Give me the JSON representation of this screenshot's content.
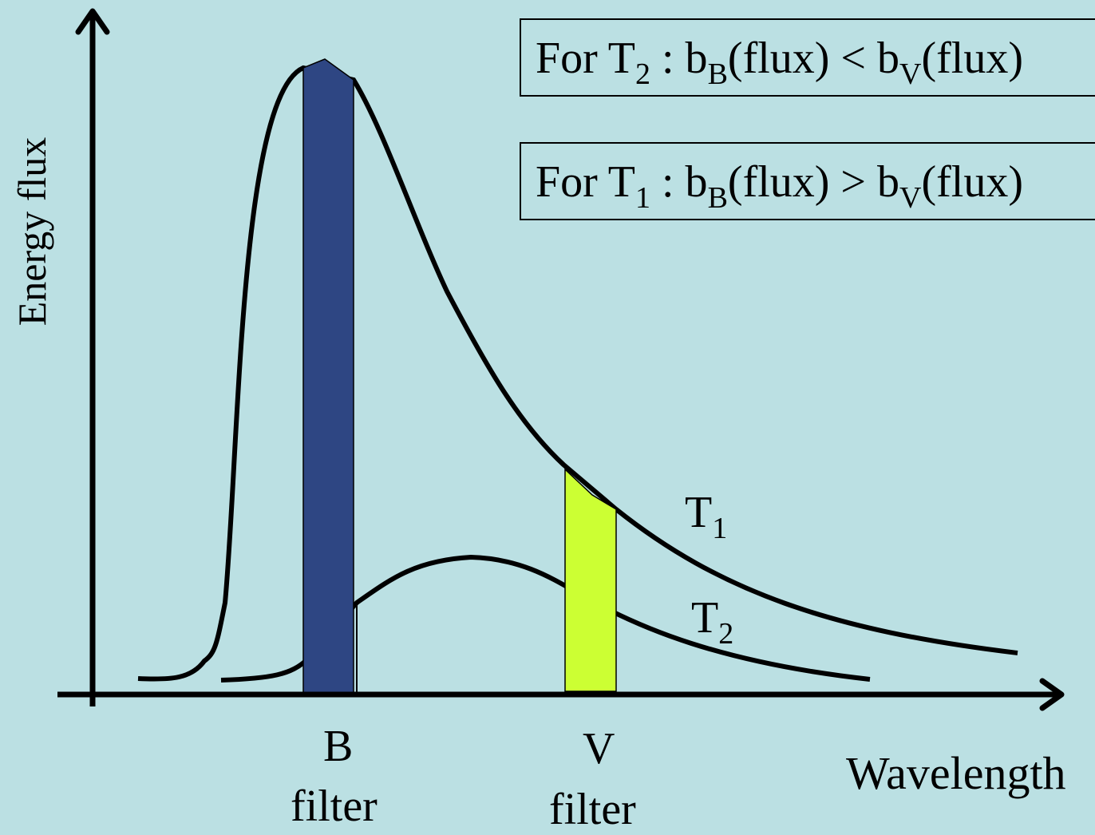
{
  "axes": {
    "x_label": "Wavelength",
    "y_label": "Energy flux"
  },
  "filters": [
    {
      "letter": "B",
      "word": "filter",
      "color": "#2e4683"
    },
    {
      "letter": "V",
      "word": "filter",
      "color": "#ccff33"
    }
  ],
  "curves": [
    {
      "name": "T",
      "subscript": "1"
    },
    {
      "name": "T",
      "subscript": "2"
    }
  ],
  "statements": [
    {
      "prefix": "For T",
      "temp": "2",
      "colon": " : b",
      "b1": "B",
      "mid": "(flux) < b",
      "b2": "V",
      "end": "(flux)"
    },
    {
      "prefix": "For T",
      "temp": "1",
      "colon": " : b",
      "b1": "B",
      "mid": "(flux) > b",
      "b2": "V",
      "end": "(flux)"
    }
  ]
}
